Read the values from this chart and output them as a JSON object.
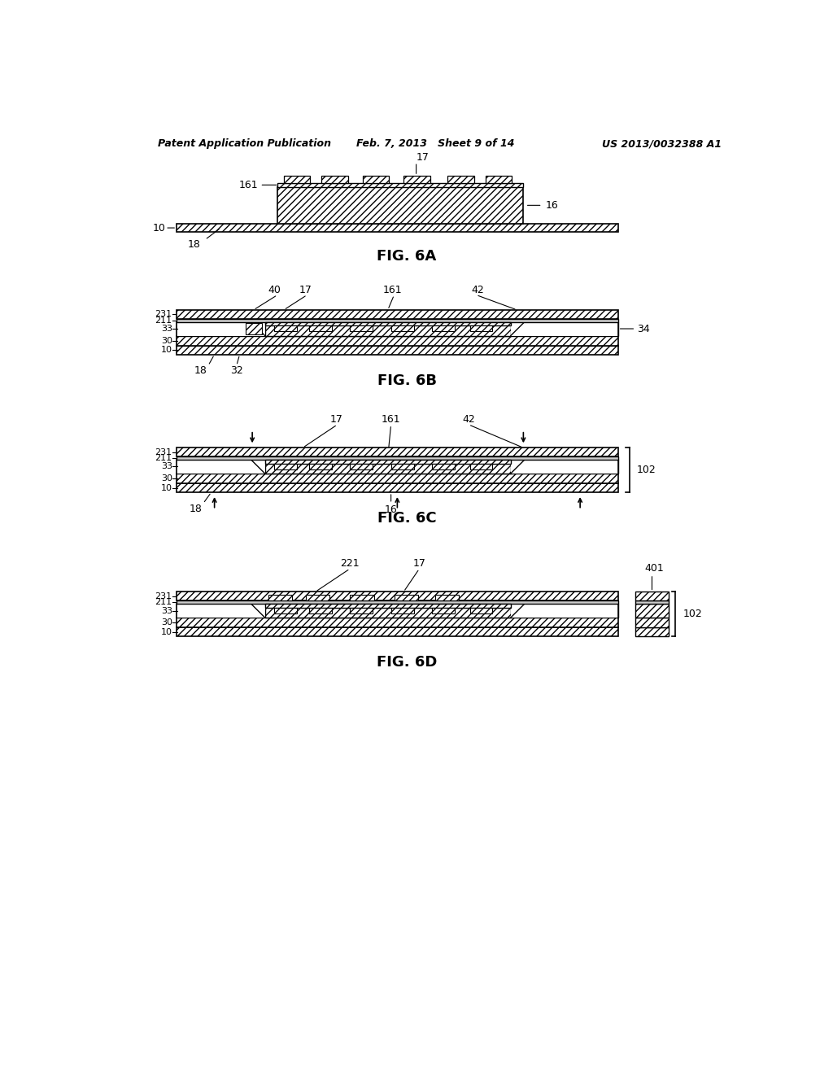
{
  "header_left": "Patent Application Publication",
  "header_mid": "Feb. 7, 2013   Sheet 9 of 14",
  "header_right": "US 2013/0032388 A1",
  "bg_color": "white",
  "hatch": "////",
  "lc": "black",
  "fig6a_label": "FIG. 6A",
  "fig6b_label": "FIG. 6B",
  "fig6c_label": "FIG. 6C",
  "fig6d_label": "FIG. 6D"
}
